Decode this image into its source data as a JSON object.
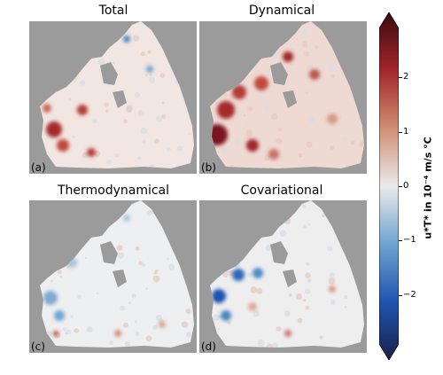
{
  "chart_data": {
    "type": "heatmap",
    "panels": [
      {
        "id": "total",
        "title": "Total",
        "label": "(a)"
      },
      {
        "id": "dynamical",
        "title": "Dynamical",
        "label": "(b)"
      },
      {
        "id": "thermo",
        "title": "Thermodynamical",
        "label": "(c)"
      },
      {
        "id": "covariational",
        "title": "Covariational",
        "label": "(d)"
      }
    ],
    "colorbar": {
      "label": "u*T* in 10⁻⁴ m/s °C",
      "ticks": [
        {
          "value": 2,
          "label": "2"
        },
        {
          "value": 1,
          "label": "1"
        },
        {
          "value": 0,
          "label": "0"
        },
        {
          "value": -1,
          "label": "−1"
        },
        {
          "value": -2,
          "label": "−2"
        }
      ],
      "range": [
        -2.9,
        2.9
      ],
      "extend": "both",
      "colormap": "balance",
      "colors": [
        "#1b2149",
        "#1f54b0",
        "#6ea4cf",
        "#eaeaea",
        "#d18e74",
        "#a3262a",
        "#3a0a0f"
      ]
    },
    "colors": {
      "land_mask": "#9b9b9b",
      "ice_shelf": "#f4f0ef"
    }
  }
}
